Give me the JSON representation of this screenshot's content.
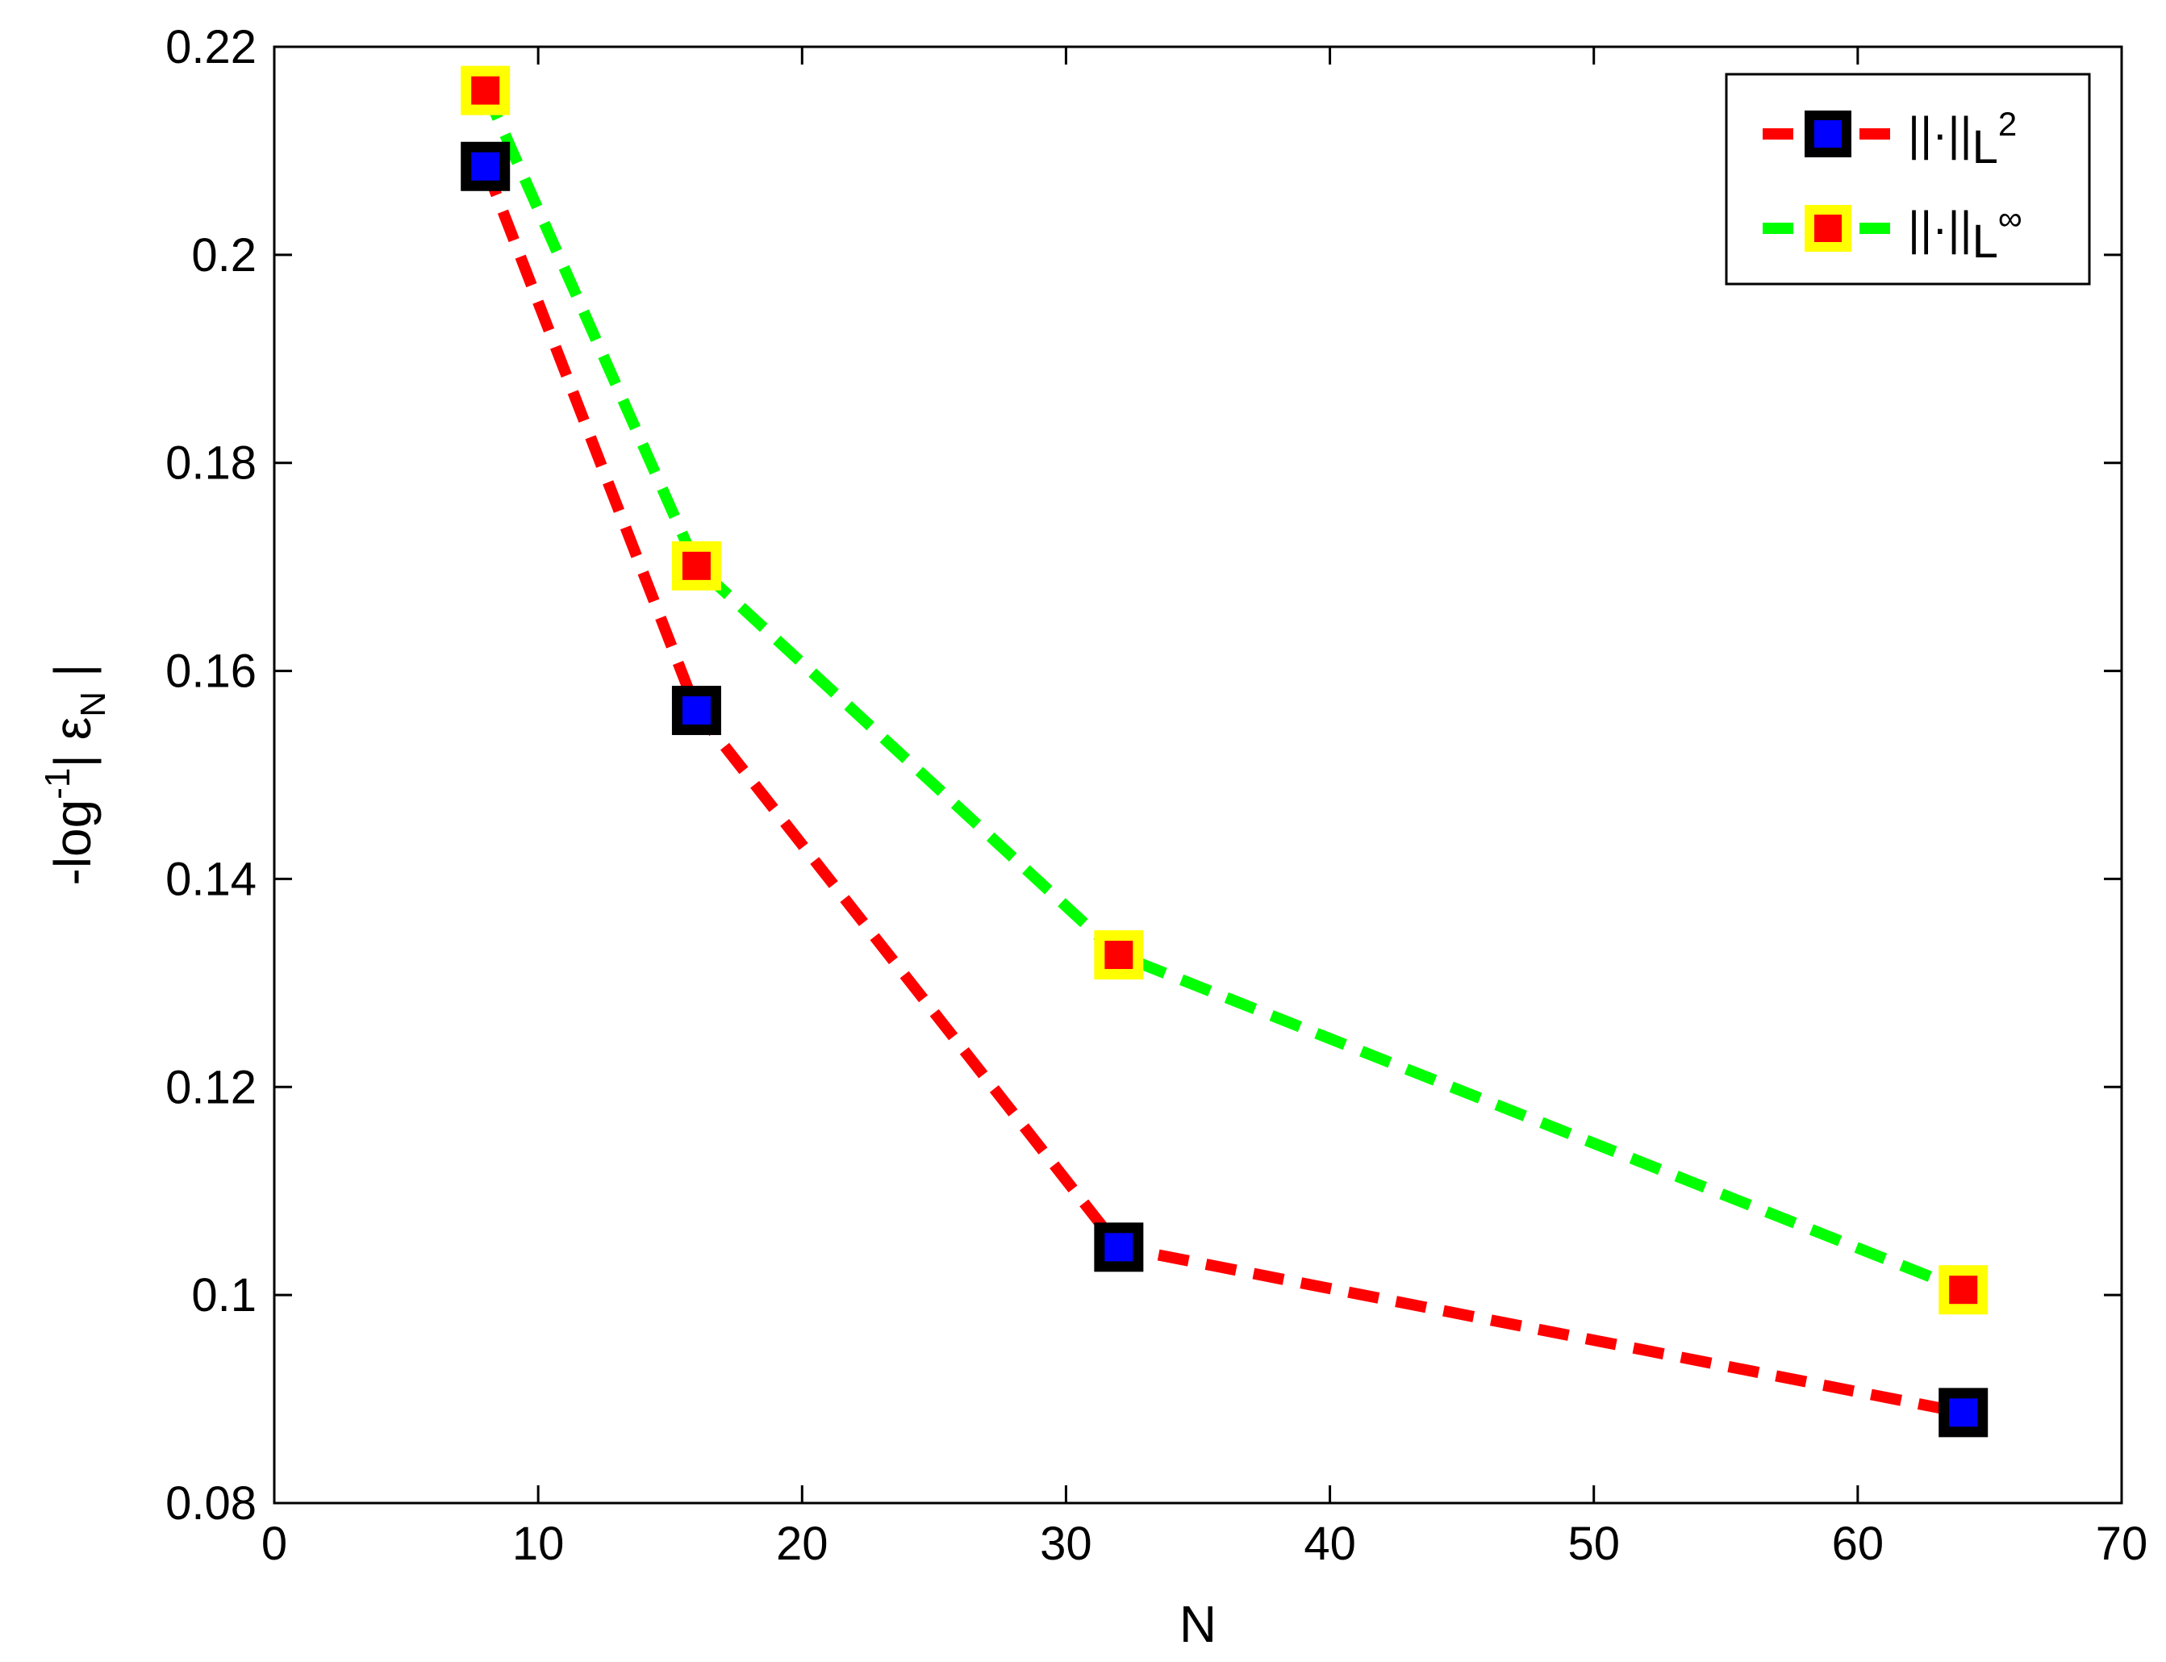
{
  "chart_data": {
    "type": "line",
    "xlabel": "N",
    "ylabel": {
      "base": "-log",
      "sup": "-1",
      "after": "| ε",
      "sub": "N",
      "end": " |"
    },
    "xlim": [
      0,
      70
    ],
    "ylim": [
      0.08,
      0.22
    ],
    "xticks": [
      0,
      10,
      20,
      30,
      40,
      50,
      60,
      70
    ],
    "yticks": [
      0.08,
      0.1,
      0.12,
      0.14,
      0.16,
      0.18,
      0.2,
      0.22
    ],
    "xtick_labels": [
      "0",
      "10",
      "20",
      "30",
      "40",
      "50",
      "60",
      "70"
    ],
    "ytick_labels": [
      "0.08",
      "0.1",
      "0.12",
      "0.14",
      "0.16",
      "0.18",
      "0.2",
      "0.22"
    ],
    "grid": false,
    "legend_position": "top-right",
    "series": [
      {
        "name": "||·||L²",
        "legend_main": "||·||",
        "legend_sub": "L",
        "legend_sup": "2",
        "line_color": "#ff0000",
        "marker_fill": "#0000ff",
        "marker_edge": "#000000",
        "x": [
          8,
          16,
          32,
          64
        ],
        "y": [
          0.2085,
          0.1562,
          0.1046,
          0.0887
        ]
      },
      {
        "name": "||·||L∞",
        "legend_main": "||·||",
        "legend_sub": "L",
        "legend_sup": "∞",
        "line_color": "#00ff00",
        "marker_fill": "#ff0000",
        "marker_edge": "#ffff00",
        "x": [
          8,
          16,
          32,
          64
        ],
        "y": [
          0.2158,
          0.1701,
          0.1327,
          0.1005
        ]
      }
    ]
  }
}
